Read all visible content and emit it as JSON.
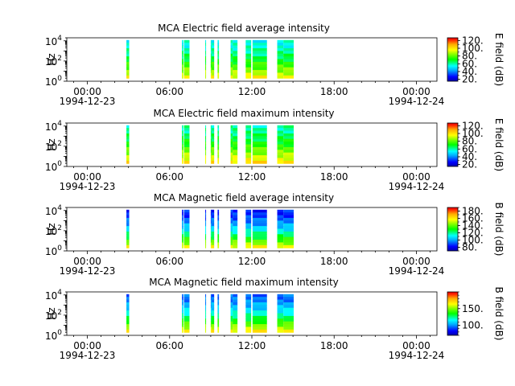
{
  "chart_data": [
    {
      "type": "heatmap",
      "title": "MCA  Electric field average intensity",
      "ylabel": "Hz",
      "y_scale": "log",
      "ylim": [
        1,
        20000
      ],
      "y_ticks": [
        {
          "value": 1,
          "base": "10",
          "exp": "0"
        },
        {
          "value": 100,
          "base": "10",
          "exp": "2"
        },
        {
          "value": 10000,
          "base": "10",
          "exp": "4"
        }
      ],
      "x_range_hours": [
        -1.5,
        25.5
      ],
      "x_ticks": [
        {
          "hour": 0,
          "label": "00:00",
          "date": "1994-12-23"
        },
        {
          "hour": 6,
          "label": "06:00",
          "date": ""
        },
        {
          "hour": 12,
          "label": "12:00",
          "date": ""
        },
        {
          "hour": 18,
          "label": "18:00",
          "date": ""
        },
        {
          "hour": 24,
          "label": "00:00",
          "date": "1994-12-24"
        }
      ],
      "colorbar": {
        "label": "E field (dB)",
        "min": 15,
        "max": 127,
        "ticks": [
          20,
          40,
          60,
          80,
          100,
          120
        ],
        "tick_labels": [
          "20.",
          "40.",
          "60.",
          "80.",
          "100.",
          "120."
        ]
      },
      "data_intervals_hours": [
        [
          2.85,
          3.05
        ],
        [
          6.9,
          7.0
        ],
        [
          7.05,
          7.45
        ],
        [
          8.6,
          8.65
        ],
        [
          9.0,
          9.05
        ],
        [
          9.05,
          9.25
        ],
        [
          9.5,
          9.6
        ],
        [
          10.45,
          10.6
        ],
        [
          10.6,
          10.95
        ],
        [
          11.55,
          11.95
        ],
        [
          12.05,
          13.1
        ],
        [
          13.85,
          14.3
        ],
        [
          14.3,
          15.05
        ]
      ],
      "intensity_profile": {
        "low_freq_db": 95,
        "high_freq_db": 55
      }
    },
    {
      "type": "heatmap",
      "title": "MCA  Electric field maximum intensity",
      "ylabel": "Hz",
      "y_scale": "log",
      "ylim": [
        1,
        20000
      ],
      "y_ticks": [
        {
          "value": 1,
          "base": "10",
          "exp": "0"
        },
        {
          "value": 100,
          "base": "10",
          "exp": "2"
        },
        {
          "value": 10000,
          "base": "10",
          "exp": "4"
        }
      ],
      "x_range_hours": [
        -1.5,
        25.5
      ],
      "x_ticks": [
        {
          "hour": 0,
          "label": "00:00",
          "date": "1994-12-23"
        },
        {
          "hour": 6,
          "label": "06:00",
          "date": ""
        },
        {
          "hour": 12,
          "label": "12:00",
          "date": ""
        },
        {
          "hour": 18,
          "label": "18:00",
          "date": ""
        },
        {
          "hour": 24,
          "label": "00:00",
          "date": "1994-12-24"
        }
      ],
      "colorbar": {
        "label": "E field (dB)",
        "min": 15,
        "max": 127,
        "ticks": [
          20,
          40,
          60,
          80,
          100,
          120
        ],
        "tick_labels": [
          "20.",
          "40.",
          "60.",
          "80.",
          "100.",
          "120."
        ]
      },
      "data_intervals_hours": [
        [
          2.85,
          3.05
        ],
        [
          6.9,
          7.0
        ],
        [
          7.05,
          7.45
        ],
        [
          8.6,
          8.65
        ],
        [
          9.0,
          9.05
        ],
        [
          9.05,
          9.25
        ],
        [
          9.5,
          9.6
        ],
        [
          10.45,
          10.6
        ],
        [
          10.6,
          10.95
        ],
        [
          11.55,
          11.95
        ],
        [
          12.05,
          13.1
        ],
        [
          13.85,
          14.3
        ],
        [
          14.3,
          15.05
        ]
      ],
      "intensity_profile": {
        "low_freq_db": 100,
        "high_freq_db": 60
      }
    },
    {
      "type": "heatmap",
      "title": "MCA  Magnetic field average intensity",
      "ylabel": "Hz",
      "y_scale": "log",
      "ylim": [
        1,
        20000
      ],
      "y_ticks": [
        {
          "value": 1,
          "base": "10",
          "exp": "0"
        },
        {
          "value": 100,
          "base": "10",
          "exp": "2"
        },
        {
          "value": 10000,
          "base": "10",
          "exp": "4"
        }
      ],
      "x_range_hours": [
        -1.5,
        25.5
      ],
      "x_ticks": [
        {
          "hour": 0,
          "label": "00:00",
          "date": "1994-12-23"
        },
        {
          "hour": 6,
          "label": "06:00",
          "date": ""
        },
        {
          "hour": 12,
          "label": "12:00",
          "date": ""
        },
        {
          "hour": 18,
          "label": "18:00",
          "date": ""
        },
        {
          "hour": 24,
          "label": "00:00",
          "date": "1994-12-24"
        }
      ],
      "colorbar": {
        "label": "B field (dB)",
        "min": 70,
        "max": 190,
        "ticks": [
          80,
          100,
          120,
          140,
          160,
          180
        ],
        "tick_labels": [
          "80.",
          "100.",
          "120.",
          "140.",
          "160.",
          "180."
        ]
      },
      "data_intervals_hours": [
        [
          2.85,
          3.05
        ],
        [
          6.9,
          7.0
        ],
        [
          7.05,
          7.45
        ],
        [
          8.6,
          8.65
        ],
        [
          9.0,
          9.05
        ],
        [
          9.05,
          9.25
        ],
        [
          9.5,
          9.6
        ],
        [
          10.45,
          10.6
        ],
        [
          10.6,
          10.95
        ],
        [
          11.55,
          11.95
        ],
        [
          12.05,
          13.1
        ],
        [
          13.85,
          14.3
        ],
        [
          14.3,
          15.05
        ]
      ],
      "intensity_profile": {
        "low_freq_db": 155,
        "high_freq_db": 85
      }
    },
    {
      "type": "heatmap",
      "title": "MCA  Magnetic field maximum intensity",
      "ylabel": "Hz",
      "y_scale": "log",
      "ylim": [
        1,
        20000
      ],
      "y_ticks": [
        {
          "value": 1,
          "base": "10",
          "exp": "0"
        },
        {
          "value": 100,
          "base": "10",
          "exp": "2"
        },
        {
          "value": 10000,
          "base": "10",
          "exp": "4"
        }
      ],
      "x_range_hours": [
        -1.5,
        25.5
      ],
      "x_ticks": [
        {
          "hour": 0,
          "label": "00:00",
          "date": "1994-12-23"
        },
        {
          "hour": 6,
          "label": "06:00",
          "date": ""
        },
        {
          "hour": 12,
          "label": "12:00",
          "date": ""
        },
        {
          "hour": 18,
          "label": "18:00",
          "date": ""
        },
        {
          "hour": 24,
          "label": "00:00",
          "date": "1994-12-24"
        }
      ],
      "colorbar": {
        "label": "B field (dB)",
        "min": 70,
        "max": 200,
        "ticks": [
          100,
          150
        ],
        "tick_labels": [
          "100.",
          "150."
        ]
      },
      "data_intervals_hours": [
        [
          2.85,
          3.05
        ],
        [
          6.9,
          7.0
        ],
        [
          7.05,
          7.45
        ],
        [
          8.6,
          8.65
        ],
        [
          9.0,
          9.05
        ],
        [
          9.05,
          9.25
        ],
        [
          9.5,
          9.6
        ],
        [
          10.45,
          10.6
        ],
        [
          10.6,
          10.95
        ],
        [
          11.55,
          11.95
        ],
        [
          12.05,
          13.1
        ],
        [
          13.85,
          14.3
        ],
        [
          14.3,
          15.05
        ]
      ],
      "intensity_profile": {
        "low_freq_db": 165,
        "high_freq_db": 95
      }
    }
  ]
}
